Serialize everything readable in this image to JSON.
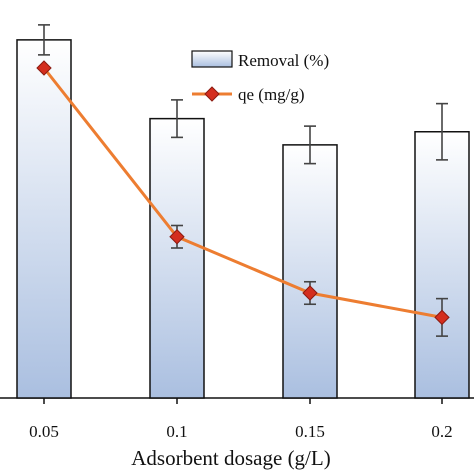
{
  "chart_data": {
    "type": "bar",
    "xlabel": "Adsorbent dosage (g/L)",
    "categories": [
      "0.05",
      "0.1",
      "0.15",
      "0.2"
    ],
    "series": [
      {
        "name": "Removal (%)",
        "type": "bar",
        "values": [
          95.5,
          74.5,
          67.5,
          71.0
        ],
        "errors": [
          4.0,
          5.0,
          5.0,
          7.5
        ],
        "fill_top": "#ffffff",
        "fill_bottom": "#aabfe0",
        "stroke": "#111111"
      },
      {
        "name": "qe (mg/g)",
        "type": "line",
        "values": [
          88.0,
          43.0,
          28.0,
          21.5
        ],
        "errors": [
          0,
          3.0,
          3.0,
          5.0
        ],
        "line_color": "#ed7d31",
        "marker_color": "#d42e1e"
      }
    ],
    "ylim": [
      0,
      100
    ],
    "grid": false,
    "legend": "top-right"
  }
}
